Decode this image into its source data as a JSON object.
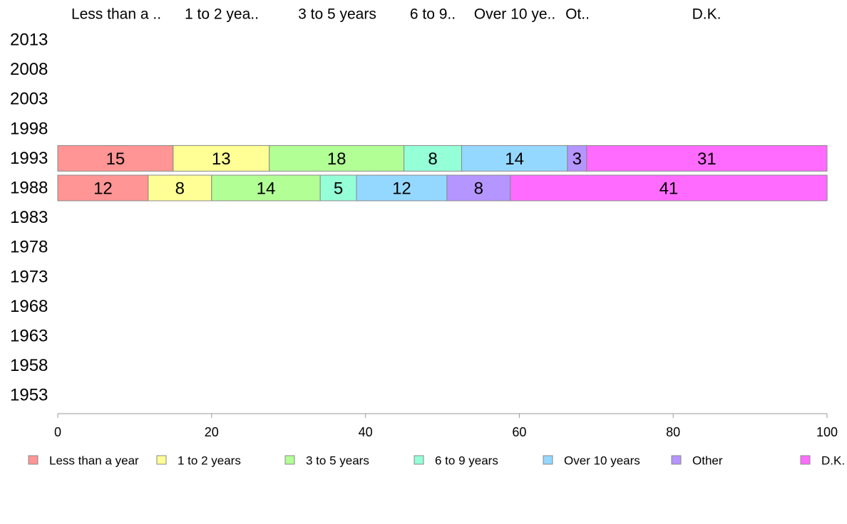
{
  "chart_data": {
    "type": "bar",
    "orientation": "horizontal",
    "stacked": true,
    "title": "",
    "xlabel": "",
    "ylabel": "",
    "xlim": [
      0,
      100
    ],
    "x_ticks": [
      0,
      20,
      40,
      60,
      80,
      100
    ],
    "years": [
      "2013",
      "2008",
      "2003",
      "1998",
      "1993",
      "1988",
      "1983",
      "1978",
      "1973",
      "1968",
      "1963",
      "1958",
      "1953"
    ],
    "category_headers": [
      "Less than a ..",
      "1 to 2 yea..",
      "3 to 5 years",
      "6 to 9..",
      "Over 10 ye..",
      "Ot..",
      "D.K."
    ],
    "series": [
      {
        "name": "Less than a year",
        "color": "#FF9595"
      },
      {
        "name": "1 to 2 years",
        "color": "#FFFF95"
      },
      {
        "name": "3 to 5 years",
        "color": "#B2FF95"
      },
      {
        "name": "6 to 9 years",
        "color": "#95FFD8"
      },
      {
        "name": "Over 10 years",
        "color": "#95D8FF"
      },
      {
        "name": "Other",
        "color": "#B595FF"
      },
      {
        "name": "D.K.",
        "color": "#FF6BFF"
      }
    ],
    "data": [
      {
        "year": "1993",
        "values": [
          15,
          12.5,
          17.5,
          7.5,
          13.75,
          2.5,
          31.25
        ],
        "labels": [
          "15",
          "13",
          "18",
          "8",
          "14",
          "3",
          "31"
        ]
      },
      {
        "year": "1988",
        "values": [
          11.76,
          8.24,
          14.12,
          4.71,
          11.76,
          8.24,
          41.18
        ],
        "labels": [
          "12",
          "8",
          "14",
          "5",
          "12",
          "8",
          "41"
        ]
      }
    ],
    "legend_position": "bottom",
    "grid": false
  }
}
